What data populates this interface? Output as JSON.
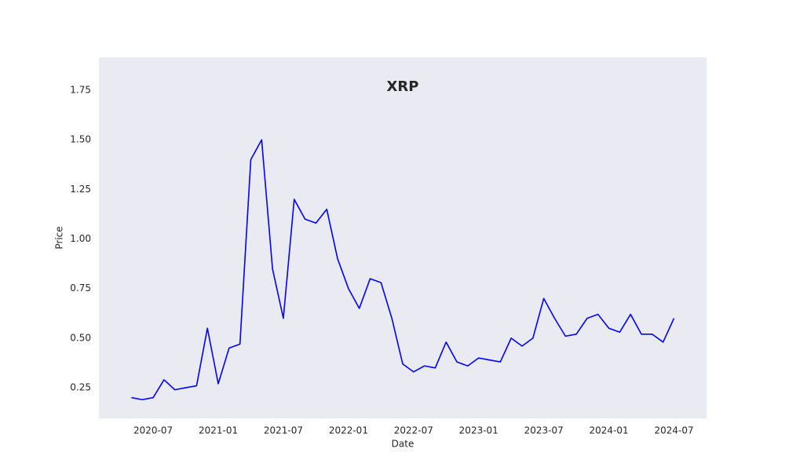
{
  "chart_data": {
    "type": "line",
    "title": "XRP",
    "xlabel": "Date",
    "ylabel": "Price",
    "x": [
      "2020-05",
      "2020-06",
      "2020-07",
      "2020-08",
      "2020-09",
      "2020-10",
      "2020-11",
      "2020-12",
      "2021-01",
      "2021-02",
      "2021-03",
      "2021-04",
      "2021-05",
      "2021-06",
      "2021-07",
      "2021-08",
      "2021-09",
      "2021-10",
      "2021-11",
      "2021-12",
      "2022-01",
      "2022-02",
      "2022-03",
      "2022-04",
      "2022-05",
      "2022-06",
      "2022-07",
      "2022-08",
      "2022-09",
      "2022-10",
      "2022-11",
      "2022-12",
      "2023-01",
      "2023-02",
      "2023-03",
      "2023-04",
      "2023-05",
      "2023-06",
      "2023-07",
      "2023-08",
      "2023-09",
      "2023-10",
      "2023-11",
      "2023-12",
      "2024-01",
      "2024-02",
      "2024-03",
      "2024-04",
      "2024-05",
      "2024-06",
      "2024-07"
    ],
    "series": [
      {
        "name": "XRP",
        "color": "#0000ff",
        "values": [
          0.2,
          0.19,
          0.2,
          0.29,
          0.24,
          0.25,
          0.26,
          0.55,
          0.27,
          0.45,
          0.47,
          1.4,
          1.5,
          0.85,
          0.6,
          1.2,
          1.1,
          1.08,
          1.15,
          0.9,
          0.75,
          0.65,
          0.8,
          0.78,
          0.6,
          0.37,
          0.33,
          0.36,
          0.35,
          0.48,
          0.38,
          0.36,
          0.4,
          0.39,
          0.38,
          0.5,
          0.46,
          0.5,
          0.7,
          0.6,
          0.51,
          0.52,
          0.6,
          0.62,
          0.55,
          0.53,
          0.62,
          0.52,
          0.52,
          0.48,
          0.6
        ]
      }
    ],
    "xlim": [
      "2020-02",
      "2024-10"
    ],
    "xticks": [
      "2020-07",
      "2021-01",
      "2021-07",
      "2022-01",
      "2022-07",
      "2023-01",
      "2023-07",
      "2024-01",
      "2024-07"
    ],
    "ylim": [
      0.096,
      1.916
    ],
    "yticks": [
      0.25,
      {
        "value": 0.5,
        "label": "0.50"
      },
      0.75,
      {
        "value": 1,
        "label": "1.00"
      },
      1.25,
      {
        "value": 1.5,
        "label": "1.50"
      },
      1.75
    ],
    "background": "#eaeaf2",
    "grid": false
  }
}
